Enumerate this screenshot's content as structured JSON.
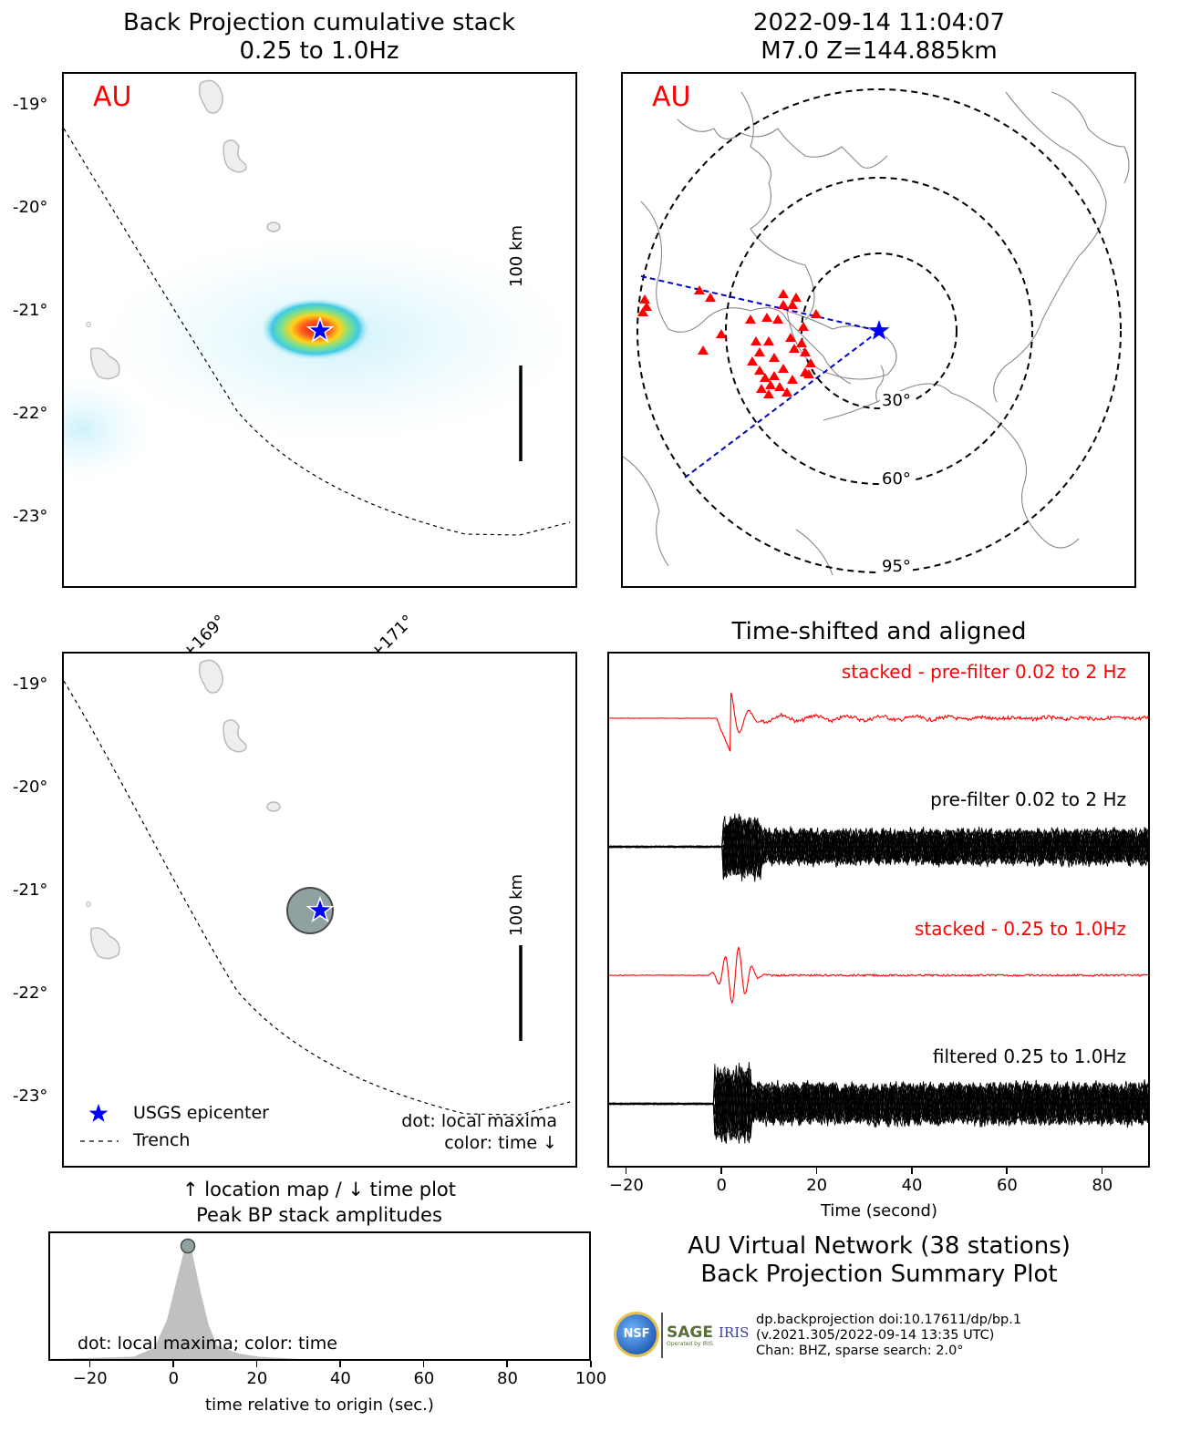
{
  "panels": {
    "bp_map": {
      "title_line1": "Back Projection cumulative stack",
      "title_line2": "0.25 to 1.0Hz",
      "network_label": "AU",
      "lat_ticks": [
        "-19°",
        "-20°",
        "-21°",
        "-22°",
        "-23°"
      ],
      "scale_label": "100 km"
    },
    "event_map": {
      "title_line1": "2022-09-14 11:04:07",
      "title_line2": "M7.0 Z=144.885km",
      "network_label": "AU",
      "ring_labels": [
        "30°",
        "60°",
        "95°"
      ]
    },
    "location_map": {
      "lon_ticks": [
        "+169°",
        "+171°"
      ],
      "lat_ticks": [
        "-19°",
        "-20°",
        "-21°",
        "-22°",
        "-23°"
      ],
      "scale_label": "100 km",
      "legend": {
        "epicenter": "USGS epicenter",
        "trench": "Trench"
      },
      "note_line1": "dot: local maxima",
      "note_line2": "color: time ↓",
      "caption_line1": "↑ location map / ↓ time plot",
      "caption_line2": "Peak BP stack amplitudes"
    },
    "traces": {
      "title": "Time-shifted and aligned",
      "labels": {
        "stacked_prefilter": "stacked - pre-filter 0.02 to 2 Hz",
        "prefilter": "pre-filter 0.02 to 2 Hz",
        "stacked_filtered": "stacked - 0.25 to 1.0Hz",
        "filtered": "filtered 0.25 to 1.0Hz"
      },
      "xlabel": "Time (second)"
    },
    "time_plot": {
      "note": "dot: local maxima; color: time",
      "xlabel": "time relative to origin (sec.)"
    }
  },
  "summary": {
    "line1": "AU Virtual Network (38 stations)",
    "line2": "Back Projection Summary Plot"
  },
  "credits": {
    "logo_nsf": "NSF",
    "logo_sage": "SAGE",
    "logo_sage_sub": "Operated by IRIS",
    "logo_iris": "IRIS",
    "line1": "dp.backprojection doi:10.17611/dp/bp.1",
    "line2": "(v.2021.305/2022-09-14 13:35 UTC)",
    "line3": "Chan: BHZ, sparse search: 2.0°"
  },
  "colors": {
    "network_label": "#ff0000",
    "epicenter": "#0000ff",
    "stacked_trace": "#ff0000",
    "station": "#ff0000",
    "great_circle": "#0000cc"
  },
  "chart_data": [
    {
      "type": "line",
      "title": "Time-shifted and aligned",
      "xlabel": "Time (second)",
      "x_ticks": [
        -20,
        0,
        20,
        40,
        60,
        80
      ],
      "xlim": [
        -24,
        90
      ],
      "series": [
        {
          "name": "stacked - pre-filter 0.02 to 2 Hz"
        },
        {
          "name": "pre-filter 0.02 to 2 Hz"
        },
        {
          "name": "stacked - 0.25 to 1.0Hz"
        },
        {
          "name": "filtered 0.25 to 1.0Hz"
        }
      ]
    },
    {
      "type": "area",
      "title": "Peak BP stack amplitudes",
      "xlabel": "time relative to origin (sec.)",
      "x_ticks": [
        -20,
        0,
        20,
        40,
        60,
        80,
        100
      ],
      "xlim": [
        -30,
        100
      ],
      "x": [
        -30,
        -10,
        -5,
        -2,
        0,
        2,
        3,
        4,
        6,
        8,
        10,
        15,
        20,
        30,
        100
      ],
      "values": [
        0,
        0.02,
        0.1,
        0.35,
        0.65,
        0.95,
        1.0,
        0.95,
        0.6,
        0.3,
        0.12,
        0.05,
        0.02,
        0,
        0
      ],
      "peak": {
        "x": 3,
        "y": 1.0
      }
    }
  ]
}
